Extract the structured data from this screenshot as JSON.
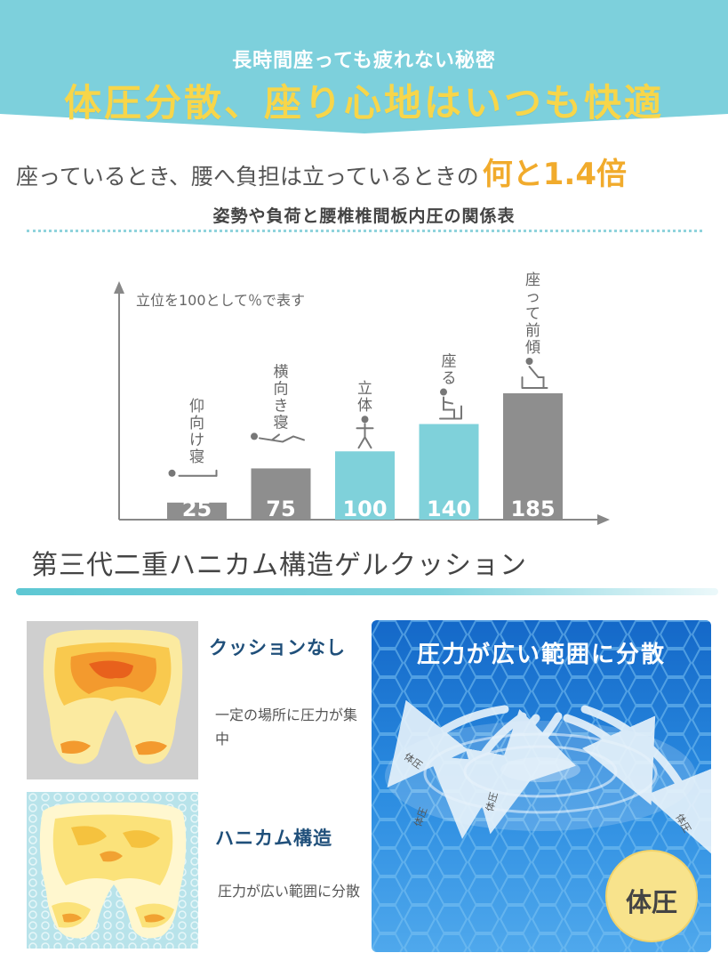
{
  "banner": {
    "subtitle": "長時間座っても疲れない秘密",
    "title": "体圧分散、座り心地はいつも快適",
    "color": "#7dd0dc"
  },
  "headline": {
    "text": "座っているとき、腰へ負担は立っているときの",
    "emphasis": "何と1.4倍"
  },
  "table_title": "姿勢や負荷と腰椎椎間板内圧の関係表",
  "chart_data": {
    "type": "bar",
    "note": "立位を100として％で表す",
    "categories": [
      "仰向け寝",
      "横向き寝",
      "立体",
      "座る",
      "座って前傾"
    ],
    "values": [
      25,
      75,
      100,
      140,
      185
    ],
    "value_labels": [
      "25",
      "75",
      "100",
      "140",
      "185"
    ],
    "colors": [
      "#8e8e8e",
      "#8e8e8e",
      "#7fd1da",
      "#7fd1da",
      "#8e8e8e"
    ],
    "icons": [
      "lying-supine-icon",
      "lying-side-icon",
      "standing-icon",
      "sitting-icon",
      "sitting-leaning-icon"
    ],
    "xlabel": "",
    "ylabel": "",
    "ylim": [
      0,
      185
    ],
    "grid": false
  },
  "section2": {
    "title": "第三代二重ハニカム構造ゲルクッション"
  },
  "comparison": [
    {
      "heading": "クッションなし",
      "description": "一定の場所に圧力が集中"
    },
    {
      "heading": "ハニカム構造",
      "description": "圧力が広い範囲に分散"
    }
  ],
  "right_panel": {
    "title": "圧力が広い範囲に分散",
    "arrow_label": "体圧",
    "badge": "体圧"
  }
}
